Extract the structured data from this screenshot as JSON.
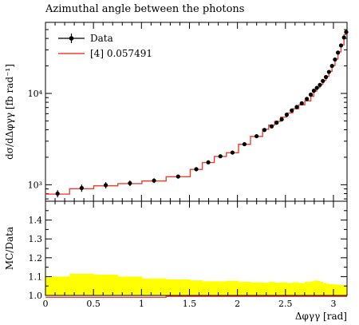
{
  "chart_data": [
    {
      "panel": "main",
      "type": "line",
      "title": "Azimuthal angle between the photons",
      "xlabel": "Δφγγ [rad]",
      "ylabel": "dσ/dΔφγγ [fb rad⁻¹]",
      "yscale": "log",
      "xlim": [
        0,
        3.1416
      ],
      "ylim": [
        660,
        60000
      ],
      "y_tick_labels": [
        "10³",
        "10⁴"
      ],
      "legend_position": "top-left",
      "legend": [
        "Data",
        "[4] 0.057491"
      ],
      "series": [
        {
          "name": "Data",
          "kind": "points-with-errors",
          "color": "#000000",
          "x": [
            0.126,
            0.377,
            0.628,
            0.88,
            1.131,
            1.382,
            1.571,
            1.696,
            1.822,
            1.948,
            2.073,
            2.199,
            2.281,
            2.356,
            2.408,
            2.461,
            2.513,
            2.566,
            2.618,
            2.67,
            2.723,
            2.764,
            2.796,
            2.827,
            2.859,
            2.89,
            2.922,
            2.953,
            2.985,
            3.016,
            3.047,
            3.079,
            3.11,
            3.133
          ],
          "y": [
            800,
            920,
            990,
            1040,
            1110,
            1230,
            1480,
            1760,
            2050,
            2250,
            2780,
            3400,
            3980,
            4360,
            4780,
            5200,
            5850,
            6500,
            7100,
            7800,
            8700,
            9700,
            10700,
            11500,
            12400,
            13700,
            15100,
            17200,
            20000,
            23500,
            28000,
            33500,
            41000,
            47000
          ],
          "y_err_rel": [
            0.09,
            0.09,
            0.08,
            0.07,
            0.06,
            0.05,
            0.05,
            0.04,
            0.04,
            0.04,
            0.04,
            0.04,
            0.04,
            0.04,
            0.04,
            0.04,
            0.04,
            0.04,
            0.04,
            0.04,
            0.04,
            0.04,
            0.04,
            0.04,
            0.04,
            0.04,
            0.04,
            0.04,
            0.04,
            0.04,
            0.04,
            0.04,
            0.04,
            0.04
          ]
        },
        {
          "name": "[4] 0.057491",
          "kind": "step",
          "color": "#e8432f",
          "bin_edges": [
            0,
            0.251,
            0.503,
            0.754,
            1.005,
            1.257,
            1.508,
            1.634,
            1.759,
            1.885,
            2.011,
            2.136,
            2.262,
            2.325,
            2.388,
            2.45,
            2.513,
            2.576,
            2.639,
            2.702,
            2.765,
            2.796,
            2.827,
            2.859,
            2.89,
            2.922,
            2.953,
            2.985,
            3.016,
            3.047,
            3.079,
            3.11,
            3.1416
          ],
          "values": [
            790,
            905,
            975,
            1030,
            1100,
            1225,
            1470,
            1750,
            2040,
            2240,
            2770,
            3380,
            4050,
            4500,
            4950,
            5500,
            6100,
            6800,
            7500,
            8300,
            9300,
            10600,
            11600,
            12600,
            13900,
            15400,
            17400,
            20200,
            23800,
            28500,
            34000,
            44000
          ]
        }
      ]
    },
    {
      "panel": "ratio",
      "type": "area",
      "ylabel": "MC/Data",
      "xlabel": "Δφγγ [rad]",
      "xlim": [
        0,
        3.1416
      ],
      "ylim": [
        1.0,
        1.5
      ],
      "x_ticks": [
        "0",
        "0.5",
        "1",
        "1.5",
        "2",
        "2.5",
        "3"
      ],
      "y_ticks": [
        "1.0",
        "1.1",
        "1.2",
        "1.3",
        "1.4"
      ],
      "uncertainty_band_color": "#ffff00",
      "ratio_line_color": "#e8432f",
      "bin_edges": [
        0,
        0.251,
        0.503,
        0.754,
        1.005,
        1.257,
        1.508,
        1.634,
        1.759,
        1.885,
        2.011,
        2.136,
        2.262,
        2.325,
        2.388,
        2.45,
        2.513,
        2.576,
        2.639,
        2.702,
        2.765,
        2.796,
        2.827,
        2.859,
        2.89,
        2.922,
        2.953,
        2.985,
        3.016,
        3.047,
        3.079,
        3.11,
        3.1416
      ],
      "band_upper": [
        1.1,
        1.115,
        1.11,
        1.1,
        1.09,
        1.085,
        1.08,
        1.075,
        1.075,
        1.078,
        1.072,
        1.07,
        1.068,
        1.072,
        1.068,
        1.07,
        1.066,
        1.07,
        1.066,
        1.072,
        1.075,
        1.08,
        1.077,
        1.072,
        1.066,
        1.062,
        1.06,
        1.06,
        1.058,
        1.056,
        1.055,
        1.055
      ],
      "ratio": [
        0.99,
        0.99,
        0.99,
        0.99,
        0.99,
        0.995,
        0.995,
        0.995,
        0.995,
        0.995,
        0.995,
        0.995,
        0.995,
        0.995,
        0.995,
        0.995,
        0.995,
        0.995,
        0.995,
        0.995,
        0.995,
        0.995,
        0.995,
        0.995,
        0.995,
        0.995,
        0.995,
        0.995,
        0.995,
        0.995,
        0.995,
        0.995
      ]
    }
  ]
}
